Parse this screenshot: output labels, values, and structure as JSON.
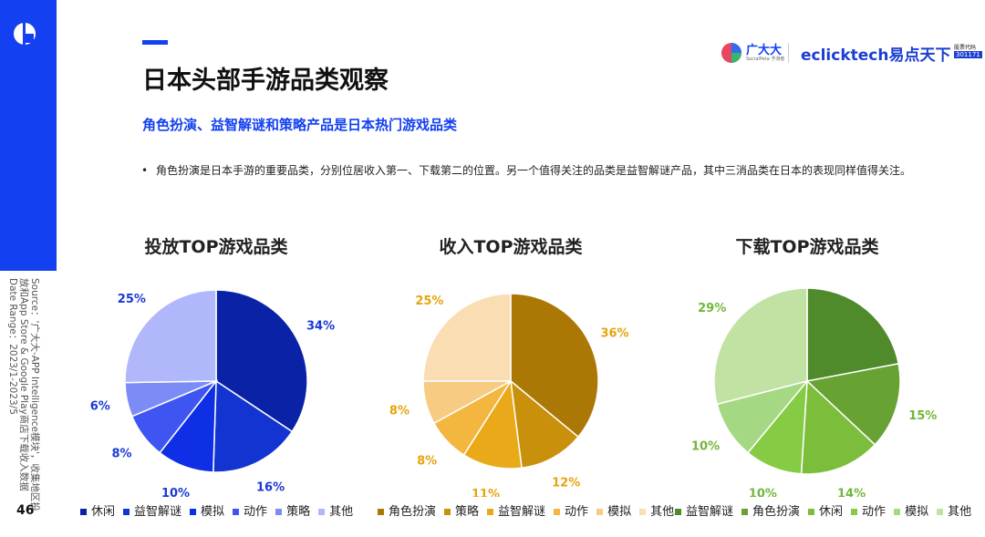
{
  "header": {
    "title": "日本头部手游品类观察",
    "subtitle": "角色扮演、益智解谜和策略产品是日本热门游戏品类",
    "bullet": "角色扮演是日本手游的重要品类，分别位居收入第一、下载第二的位置。另一个值得关注的品类是益智解谜产品，其中三消品类在日本的表现同样值得关注。"
  },
  "logos": {
    "brand1": "广大大",
    "brand1_sub": "SocialPeta 予测者",
    "brand2": "eclicktech易点天下",
    "stock_label": "股票代码",
    "stock_code": "301171"
  },
  "source": {
    "lines": [
      "Source：'广大大-APP Intelligence模块'，收集地区投",
      "放和App Store & Google Play商店下载收入数据",
      "Date Range：2023/1-2023/5"
    ]
  },
  "page_number": "46",
  "chart_data": [
    {
      "type": "pie",
      "title": "投放TOP游戏品类",
      "categories": [
        "休闲",
        "益智解谜",
        "模拟",
        "动作",
        "策略",
        "其他"
      ],
      "values": [
        34,
        16,
        10,
        8,
        6,
        25
      ],
      "value_labels": [
        "34%",
        "16%",
        "10%",
        "8%",
        "6%",
        "25%"
      ],
      "colors": [
        "#0a22a6",
        "#1434d2",
        "#0f2fe6",
        "#3f55f2",
        "#7c8cf6",
        "#b0b7fb"
      ],
      "label_color": "#1a3ad6",
      "legend": "bottom"
    },
    {
      "type": "pie",
      "title": "收入TOP游戏品类",
      "categories": [
        "角色扮演",
        "策略",
        "益智解谜",
        "动作",
        "模拟",
        "其他"
      ],
      "values": [
        36,
        12,
        11,
        8,
        8,
        25
      ],
      "value_labels": [
        "36%",
        "12%",
        "11%",
        "8%",
        "8%",
        "25%"
      ],
      "colors": [
        "#ab7806",
        "#c9900b",
        "#e9a918",
        "#f3b73f",
        "#f7cb81",
        "#fbddb3"
      ],
      "label_color": "#e5a40f",
      "legend": "bottom"
    },
    {
      "type": "pie",
      "title": "下载TOP游戏品类",
      "categories": [
        "益智解谜",
        "角色扮演",
        "休闲",
        "动作",
        "模拟",
        "其他"
      ],
      "values": [
        22,
        15,
        14,
        10,
        10,
        29
      ],
      "value_labels": [
        null,
        "15%",
        "14%",
        "10%",
        "10%",
        "29%"
      ],
      "colors": [
        "#4f8a2b",
        "#67a232",
        "#7cbd3c",
        "#86cb44",
        "#a5d882",
        "#c2e2a3"
      ],
      "label_color": "#72b63a",
      "legend": "bottom"
    }
  ]
}
